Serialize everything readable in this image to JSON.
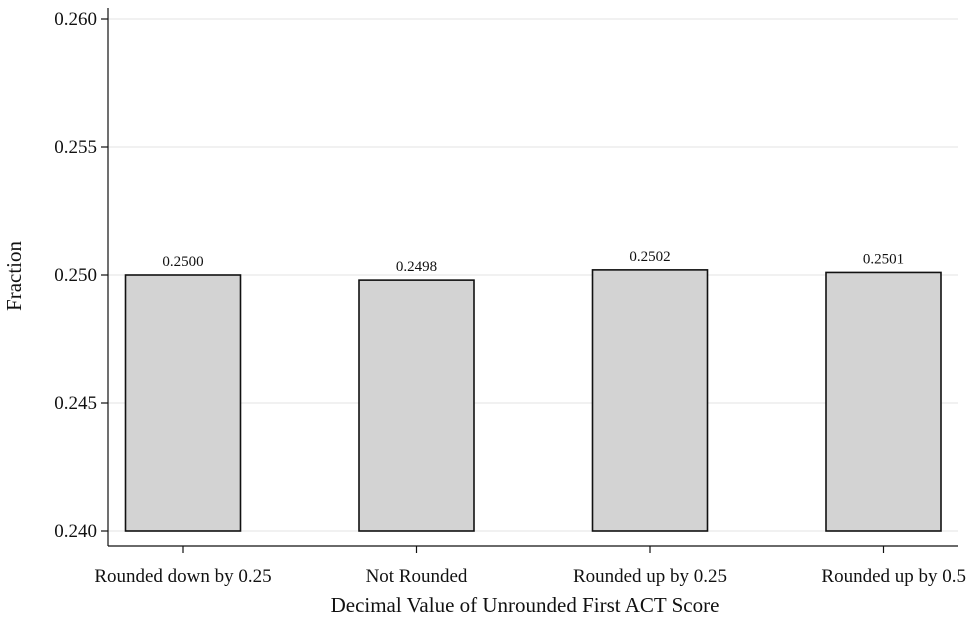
{
  "chart_data": {
    "type": "bar",
    "categories": [
      "Rounded down by 0.25",
      "Not Rounded",
      "Rounded up by 0.25",
      "Rounded up by 0.5"
    ],
    "values": [
      0.25,
      0.2498,
      0.2502,
      0.2501
    ],
    "value_labels": [
      "0.2500",
      "0.2498",
      "0.2502",
      "0.2501"
    ],
    "xlabel": "Decimal Value of Unrounded First ACT Score",
    "ylabel": "Fraction",
    "ylim": [
      0.24,
      0.26
    ],
    "yticks": [
      0.24,
      0.245,
      0.25,
      0.255,
      0.26
    ],
    "ytick_labels": [
      "0.240",
      "0.245",
      "0.250",
      "0.255",
      "0.260"
    ],
    "grid": true,
    "bar_color": "#d3d3d3",
    "bar_edge_color": "#111111"
  }
}
